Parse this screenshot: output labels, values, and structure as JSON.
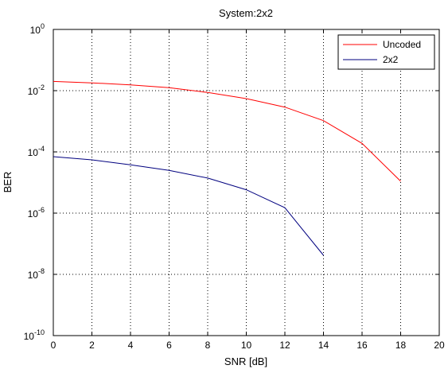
{
  "chart_data": {
    "type": "line",
    "title": "System:2x2",
    "xlabel": "SNR [dB]",
    "ylabel": "BER",
    "xlim": [
      0,
      20
    ],
    "ylim": [
      1e-10,
      1
    ],
    "yscale": "log",
    "grid": true,
    "legend_position": "top-right",
    "xticks": [
      0,
      2,
      4,
      6,
      8,
      10,
      12,
      14,
      16,
      18,
      20
    ],
    "xtick_labels": [
      "0",
      "2",
      "4",
      "6",
      "8",
      "10",
      "12",
      "14",
      "16",
      "18",
      "20"
    ],
    "yticks": [
      {
        "value": 1,
        "base": "10",
        "exp": "0"
      },
      {
        "value": 0.01,
        "base": "10",
        "exp": "-2"
      },
      {
        "value": 0.0001,
        "base": "10",
        "exp": "-4"
      },
      {
        "value": 1e-06,
        "base": "10",
        "exp": "-6"
      },
      {
        "value": 1e-08,
        "base": "10",
        "exp": "-8"
      },
      {
        "value": 1e-10,
        "base": "10",
        "exp": "-10"
      }
    ],
    "series": [
      {
        "name": "Uncoded",
        "color": "#ff0000",
        "x": [
          0,
          2,
          4,
          6,
          8,
          10,
          12,
          14,
          16,
          18
        ],
        "y": [
          0.02,
          0.018,
          0.0155,
          0.0125,
          0.0087,
          0.0055,
          0.0029,
          0.00105,
          0.00019,
          1.1e-05
        ]
      },
      {
        "name": "2x2",
        "color": "#00007f",
        "x": [
          0,
          2,
          4,
          6,
          8,
          10,
          12,
          14
        ],
        "y": [
          7e-05,
          5.5e-05,
          3.8e-05,
          2.5e-05,
          1.4e-05,
          5.8e-06,
          1.5e-06,
          4.2e-08
        ]
      }
    ]
  }
}
